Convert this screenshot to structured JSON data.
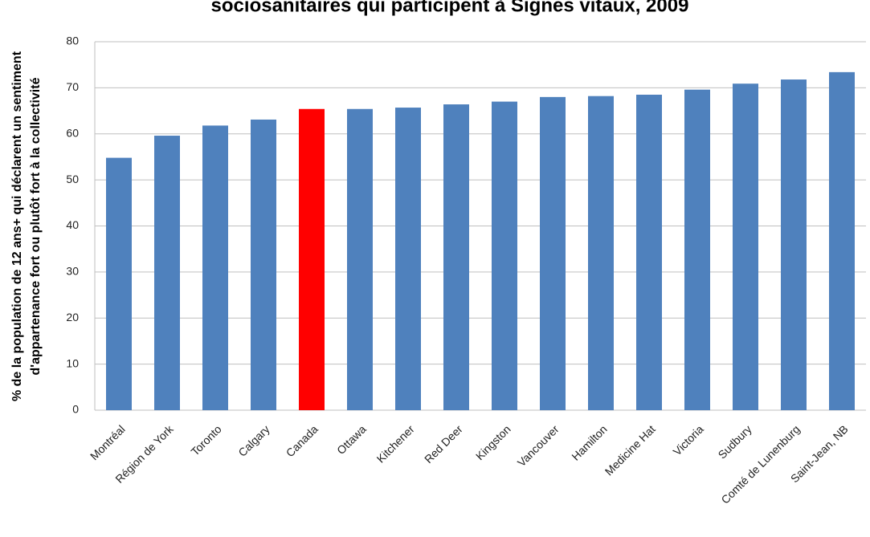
{
  "chart_data": {
    "type": "bar",
    "title": "sociosanitaires qui participent à Signes vitaux, 2009",
    "y_label": [
      "% de la population de 12 ans+ qui déclarent un sentiment",
      "d'appartenance fort ou plutôt fort à la collectivité"
    ],
    "categories": [
      "Montréal",
      "Région de York",
      "Toronto",
      "Calgary",
      "Canada",
      "Ottawa",
      "Kitchener",
      "Red Deer",
      "Kingston",
      "Vancouver",
      "Hamilton",
      "Medicine Hat",
      "Victoria",
      "Sudbury",
      "Comté de Lunenburg",
      "Saint-Jean, NB"
    ],
    "values": [
      54.8,
      59.6,
      61.8,
      63.1,
      65.4,
      65.4,
      65.7,
      66.4,
      67.0,
      68.0,
      68.2,
      68.5,
      69.6,
      70.9,
      71.8,
      73.4
    ],
    "colors": [
      "#4f81bd",
      "#4f81bd",
      "#4f81bd",
      "#4f81bd",
      "#ff0000",
      "#4f81bd",
      "#4f81bd",
      "#4f81bd",
      "#4f81bd",
      "#4f81bd",
      "#4f81bd",
      "#4f81bd",
      "#4f81bd",
      "#4f81bd",
      "#4f81bd",
      "#4f81bd"
    ],
    "ylim": [
      0,
      80
    ],
    "yticks": [
      0,
      10,
      20,
      30,
      40,
      50,
      60,
      70,
      80
    ],
    "grid": true
  }
}
